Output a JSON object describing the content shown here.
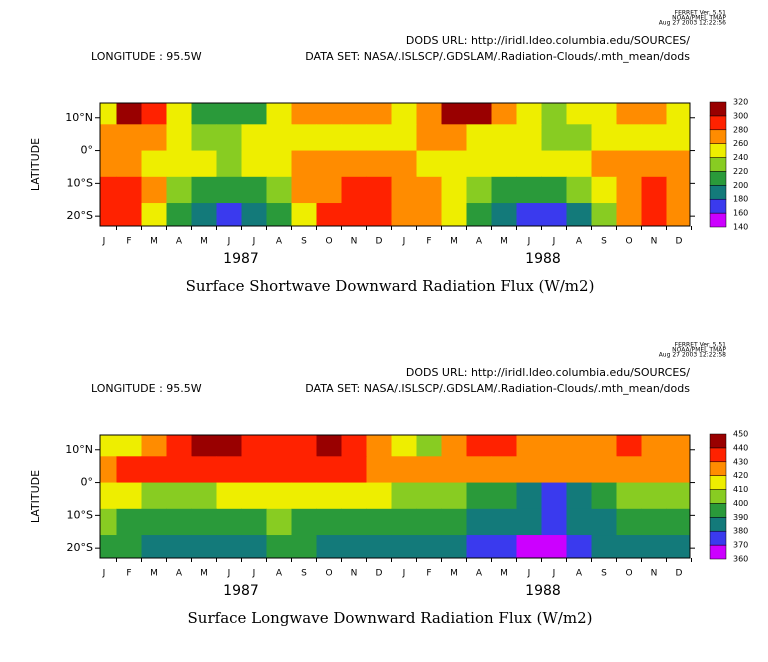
{
  "chart_data": [
    {
      "type": "heatmap",
      "ferret": [
        "FERRET Ver. 5.51",
        "NOAA/PMEL TMAP",
        "Aug 27 2003 12:22:56"
      ],
      "dods_url": "DODS URL: http://iridl.ldeo.columbia.edu/SOURCES/",
      "longitude": "LONGITUDE : 95.5W",
      "dataset": "DATA SET: NASA/.ISLSCP/.GDSLAM/.Radiation-Clouds/.mth_mean/dods",
      "title": "Surface Shortwave Downward Radiation Flux (W/m2)",
      "y_label": "LATITUDE",
      "categories": [
        "J",
        "F",
        "M",
        "A",
        "M",
        "J",
        "J",
        "A",
        "S",
        "O",
        "N",
        "D",
        "J",
        "F",
        "M",
        "A",
        "M",
        "J",
        "J",
        "A",
        "S",
        "O",
        "N",
        "D"
      ],
      "years": [
        "1987",
        "1988"
      ],
      "ylim": [
        -23,
        14.5
      ],
      "yticks": [
        {
          "value": 10,
          "label": "10°N"
        },
        {
          "value": 0,
          "label": "0°"
        },
        {
          "value": -10,
          "label": "10°S"
        },
        {
          "value": -20,
          "label": "20°S"
        }
      ],
      "lats": [
        12,
        4,
        -4,
        -12,
        -20
      ],
      "levels": [
        140,
        160,
        180,
        200,
        220,
        240,
        260,
        280,
        300,
        320
      ],
      "colors": [
        "#cc00ff",
        "#3a3aee",
        "#137a7a",
        "#2a9a3a",
        "#88cc22",
        "#eeee00",
        "#ff8c00",
        "#ff2200",
        "#990000"
      ],
      "field": [
        [
          250,
          300,
          290,
          250,
          210,
          200,
          210,
          240,
          260,
          270,
          260,
          260,
          250,
          270,
          300,
          300,
          270,
          250,
          230,
          240,
          250,
          260,
          260,
          250
        ],
        [
          260,
          270,
          260,
          240,
          220,
          230,
          240,
          250,
          250,
          250,
          250,
          250,
          250,
          260,
          260,
          250,
          240,
          240,
          230,
          230,
          240,
          250,
          250,
          250
        ],
        [
          260,
          260,
          250,
          250,
          240,
          230,
          240,
          250,
          270,
          270,
          270,
          260,
          260,
          250,
          250,
          250,
          250,
          240,
          250,
          250,
          260,
          270,
          270,
          260
        ],
        [
          290,
          280,
          260,
          230,
          210,
          200,
          210,
          230,
          260,
          270,
          280,
          290,
          270,
          260,
          250,
          230,
          210,
          200,
          200,
          220,
          250,
          270,
          280,
          270
        ],
        [
          290,
          280,
          250,
          210,
          180,
          160,
          180,
          210,
          250,
          280,
          290,
          290,
          270,
          260,
          240,
          210,
          190,
          170,
          160,
          190,
          230,
          270,
          280,
          270
        ]
      ]
    },
    {
      "type": "heatmap",
      "ferret": [
        "FERRET Ver. 5.51",
        "NOAA/PMEL TMAP",
        "Aug 27 2003 12:22:58"
      ],
      "dods_url": "DODS URL: http://iridl.ldeo.columbia.edu/SOURCES/",
      "longitude": "LONGITUDE : 95.5W",
      "dataset": "DATA SET: NASA/.ISLSCP/.GDSLAM/.Radiation-Clouds/.mth_mean/dods",
      "title": "Surface Longwave Downward Radiation Flux (W/m2)",
      "y_label": "LATITUDE",
      "categories": [
        "J",
        "F",
        "M",
        "A",
        "M",
        "J",
        "J",
        "A",
        "S",
        "O",
        "N",
        "D",
        "J",
        "F",
        "M",
        "A",
        "M",
        "J",
        "J",
        "A",
        "S",
        "O",
        "N",
        "D"
      ],
      "years": [
        "1987",
        "1988"
      ],
      "ylim": [
        -23,
        14.5
      ],
      "yticks": [
        {
          "value": 10,
          "label": "10°N"
        },
        {
          "value": 0,
          "label": "0°"
        },
        {
          "value": -10,
          "label": "10°S"
        },
        {
          "value": -20,
          "label": "20°S"
        }
      ],
      "lats": [
        12,
        4,
        -4,
        -12,
        -20
      ],
      "levels": [
        360,
        370,
        380,
        390,
        400,
        410,
        420,
        430,
        440,
        450
      ],
      "colors": [
        "#cc00ff",
        "#3a3aee",
        "#137a7a",
        "#2a9a3a",
        "#88cc22",
        "#eeee00",
        "#ff8c00",
        "#ff2200",
        "#990000"
      ],
      "field": [
        [
          410,
          415,
          425,
          435,
          445,
          440,
          435,
          430,
          435,
          440,
          435,
          420,
          410,
          405,
          420,
          430,
          430,
          425,
          420,
          420,
          425,
          430,
          425,
          420
        ],
        [
          425,
          430,
          430,
          435,
          435,
          430,
          430,
          430,
          430,
          430,
          430,
          425,
          420,
          420,
          420,
          425,
          425,
          420,
          420,
          425,
          425,
          425,
          425,
          420
        ],
        [
          410,
          410,
          405,
          400,
          405,
          410,
          410,
          410,
          410,
          410,
          410,
          410,
          405,
          405,
          400,
          395,
          390,
          380,
          375,
          385,
          395,
          400,
          400,
          405
        ],
        [
          400,
          395,
          390,
          395,
          395,
          395,
          395,
          400,
          395,
          395,
          395,
          395,
          395,
          395,
          390,
          385,
          380,
          380,
          375,
          380,
          385,
          390,
          395,
          395
        ],
        [
          390,
          390,
          385,
          385,
          385,
          380,
          385,
          390,
          390,
          385,
          385,
          385,
          385,
          385,
          380,
          375,
          370,
          365,
          365,
          370,
          380,
          385,
          385,
          385
        ]
      ]
    }
  ]
}
